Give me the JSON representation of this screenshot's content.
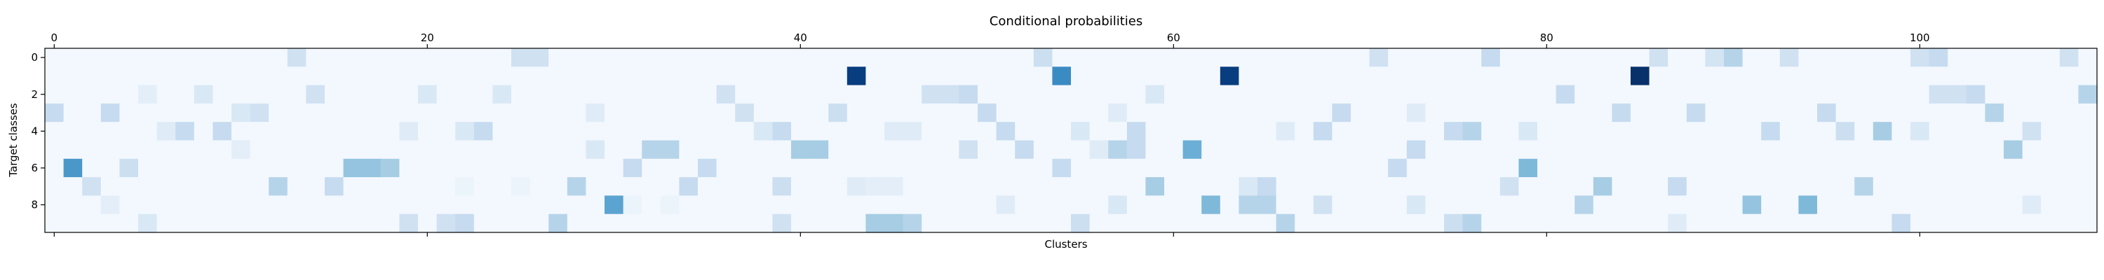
{
  "chart_data": {
    "type": "heatmap",
    "title": "Conditional probabilities",
    "xlabel": "Clusters",
    "ylabel": "Target classes",
    "n_cols": 110,
    "n_rows": 10,
    "x_ticks": [
      "0",
      "20",
      "40",
      "60",
      "80",
      "100"
    ],
    "y_ticks": [
      "0",
      "2",
      "4",
      "6",
      "8"
    ],
    "x_tick_values": [
      0,
      20,
      40,
      60,
      80,
      100
    ],
    "y_tick_values": [
      0,
      2,
      4,
      6,
      8
    ],
    "xlim": [
      -0.5,
      109.5
    ],
    "ylim": [
      9.5,
      -0.5
    ],
    "x_axis_position": "top",
    "grid": false,
    "legend": "none",
    "colormap": [
      "#f7fbff",
      "#deebf7",
      "#c6dbef",
      "#9ecae1",
      "#6baed6",
      "#4292c6",
      "#2171b5",
      "#08519c",
      "#08306b"
    ],
    "background_value": 0.02,
    "cells": [
      [
        0,
        13,
        0.2
      ],
      [
        0,
        25,
        0.2
      ],
      [
        0,
        26,
        0.2
      ],
      [
        0,
        53,
        0.22
      ],
      [
        0,
        71,
        0.2
      ],
      [
        0,
        77,
        0.25
      ],
      [
        0,
        86,
        0.2
      ],
      [
        0,
        89,
        0.18
      ],
      [
        0,
        90,
        0.3
      ],
      [
        0,
        93,
        0.2
      ],
      [
        0,
        100,
        0.2
      ],
      [
        0,
        101,
        0.25
      ],
      [
        0,
        108,
        0.2
      ],
      [
        1,
        43,
        0.95
      ],
      [
        1,
        54,
        0.65
      ],
      [
        1,
        63,
        0.95
      ],
      [
        1,
        85,
        1.0
      ],
      [
        2,
        5,
        0.1
      ],
      [
        2,
        8,
        0.15
      ],
      [
        2,
        14,
        0.2
      ],
      [
        2,
        20,
        0.15
      ],
      [
        2,
        24,
        0.15
      ],
      [
        2,
        36,
        0.2
      ],
      [
        2,
        47,
        0.2
      ],
      [
        2,
        48,
        0.2
      ],
      [
        2,
        49,
        0.25
      ],
      [
        2,
        59,
        0.15
      ],
      [
        2,
        81,
        0.25
      ],
      [
        2,
        101,
        0.2
      ],
      [
        2,
        102,
        0.2
      ],
      [
        2,
        103,
        0.25
      ],
      [
        2,
        109,
        0.3
      ],
      [
        3,
        0,
        0.25
      ],
      [
        3,
        3,
        0.25
      ],
      [
        3,
        10,
        0.15
      ],
      [
        3,
        11,
        0.2
      ],
      [
        3,
        29,
        0.12
      ],
      [
        3,
        37,
        0.2
      ],
      [
        3,
        42,
        0.22
      ],
      [
        3,
        50,
        0.25
      ],
      [
        3,
        57,
        0.12
      ],
      [
        3,
        69,
        0.25
      ],
      [
        3,
        73,
        0.12
      ],
      [
        3,
        84,
        0.25
      ],
      [
        3,
        88,
        0.25
      ],
      [
        3,
        95,
        0.25
      ],
      [
        3,
        104,
        0.3
      ],
      [
        4,
        6,
        0.12
      ],
      [
        4,
        7,
        0.25
      ],
      [
        4,
        9,
        0.25
      ],
      [
        4,
        19,
        0.12
      ],
      [
        4,
        22,
        0.15
      ],
      [
        4,
        23,
        0.25
      ],
      [
        4,
        38,
        0.15
      ],
      [
        4,
        39,
        0.25
      ],
      [
        4,
        45,
        0.12
      ],
      [
        4,
        46,
        0.12
      ],
      [
        4,
        51,
        0.25
      ],
      [
        4,
        55,
        0.15
      ],
      [
        4,
        58,
        0.25
      ],
      [
        4,
        66,
        0.12
      ],
      [
        4,
        68,
        0.25
      ],
      [
        4,
        75,
        0.25
      ],
      [
        4,
        76,
        0.3
      ],
      [
        4,
        79,
        0.15
      ],
      [
        4,
        92,
        0.25
      ],
      [
        4,
        96,
        0.22
      ],
      [
        4,
        98,
        0.35
      ],
      [
        4,
        100,
        0.15
      ],
      [
        4,
        106,
        0.2
      ],
      [
        5,
        10,
        0.1
      ],
      [
        5,
        29,
        0.15
      ],
      [
        5,
        32,
        0.3
      ],
      [
        5,
        33,
        0.3
      ],
      [
        5,
        40,
        0.35
      ],
      [
        5,
        41,
        0.35
      ],
      [
        5,
        49,
        0.2
      ],
      [
        5,
        52,
        0.25
      ],
      [
        5,
        56,
        0.12
      ],
      [
        5,
        57,
        0.3
      ],
      [
        5,
        58,
        0.25
      ],
      [
        5,
        61,
        0.5
      ],
      [
        5,
        73,
        0.25
      ],
      [
        5,
        105,
        0.35
      ],
      [
        6,
        1,
        0.6
      ],
      [
        6,
        4,
        0.22
      ],
      [
        6,
        16,
        0.4
      ],
      [
        6,
        17,
        0.4
      ],
      [
        6,
        18,
        0.35
      ],
      [
        6,
        31,
        0.25
      ],
      [
        6,
        35,
        0.25
      ],
      [
        6,
        54,
        0.25
      ],
      [
        6,
        72,
        0.25
      ],
      [
        6,
        79,
        0.45
      ],
      [
        7,
        2,
        0.2
      ],
      [
        7,
        12,
        0.3
      ],
      [
        7,
        15,
        0.25
      ],
      [
        7,
        22,
        0.06
      ],
      [
        7,
        25,
        0.06
      ],
      [
        7,
        28,
        0.3
      ],
      [
        7,
        34,
        0.25
      ],
      [
        7,
        39,
        0.22
      ],
      [
        7,
        43,
        0.12
      ],
      [
        7,
        44,
        0.1
      ],
      [
        7,
        45,
        0.1
      ],
      [
        7,
        59,
        0.35
      ],
      [
        7,
        64,
        0.15
      ],
      [
        7,
        65,
        0.25
      ],
      [
        7,
        78,
        0.2
      ],
      [
        7,
        83,
        0.35
      ],
      [
        7,
        87,
        0.25
      ],
      [
        7,
        97,
        0.3
      ],
      [
        8,
        3,
        0.1
      ],
      [
        8,
        30,
        0.55
      ],
      [
        8,
        31,
        0.06
      ],
      [
        8,
        33,
        0.06
      ],
      [
        8,
        51,
        0.12
      ],
      [
        8,
        57,
        0.15
      ],
      [
        8,
        62,
        0.45
      ],
      [
        8,
        64,
        0.3
      ],
      [
        8,
        65,
        0.3
      ],
      [
        8,
        68,
        0.2
      ],
      [
        8,
        73,
        0.15
      ],
      [
        8,
        82,
        0.3
      ],
      [
        8,
        91,
        0.4
      ],
      [
        8,
        94,
        0.45
      ],
      [
        8,
        106,
        0.12
      ],
      [
        9,
        5,
        0.15
      ],
      [
        9,
        19,
        0.2
      ],
      [
        9,
        21,
        0.2
      ],
      [
        9,
        22,
        0.25
      ],
      [
        9,
        27,
        0.3
      ],
      [
        9,
        39,
        0.2
      ],
      [
        9,
        44,
        0.35
      ],
      [
        9,
        45,
        0.35
      ],
      [
        9,
        46,
        0.3
      ],
      [
        9,
        55,
        0.22
      ],
      [
        9,
        66,
        0.3
      ],
      [
        9,
        75,
        0.22
      ],
      [
        9,
        76,
        0.3
      ],
      [
        9,
        87,
        0.12
      ],
      [
        9,
        99,
        0.25
      ]
    ]
  }
}
